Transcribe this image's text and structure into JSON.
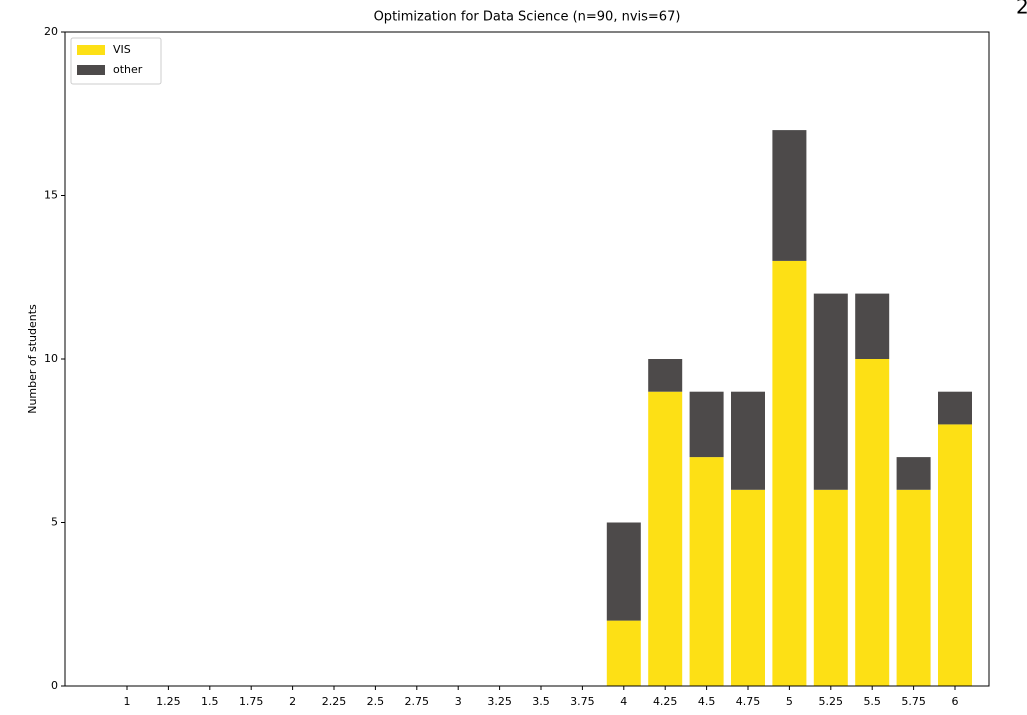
{
  "chart_data": {
    "type": "stacked_bar",
    "title": "Optimization for Data Science (n=90, nvis=67)",
    "y_label": "Number of students",
    "annotation": "2",
    "categories": [
      "1",
      "1.25",
      "1.5",
      "1.75",
      "2",
      "2.25",
      "2.5",
      "2.75",
      "3",
      "3.25",
      "3.5",
      "3.75",
      "4",
      "4.25",
      "4.5",
      "4.75",
      "5",
      "5.25",
      "5.5",
      "5.75",
      "6"
    ],
    "series": [
      {
        "name": "VIS",
        "color": "#fde015",
        "values": [
          0,
          0,
          0,
          0,
          0,
          0,
          0,
          0,
          0,
          0,
          0,
          0,
          2,
          9,
          7,
          6,
          13,
          6,
          10,
          6,
          8
        ]
      },
      {
        "name": "other",
        "color": "#4d4a4a",
        "values": [
          0,
          0,
          0,
          0,
          0,
          0,
          0,
          0,
          0,
          0,
          0,
          0,
          3,
          1,
          2,
          3,
          4,
          6,
          2,
          1,
          1
        ]
      }
    ],
    "ylim": [
      0,
      20
    ],
    "yticks": [
      0,
      5,
      10,
      15,
      20
    ],
    "legend": "upper left"
  }
}
